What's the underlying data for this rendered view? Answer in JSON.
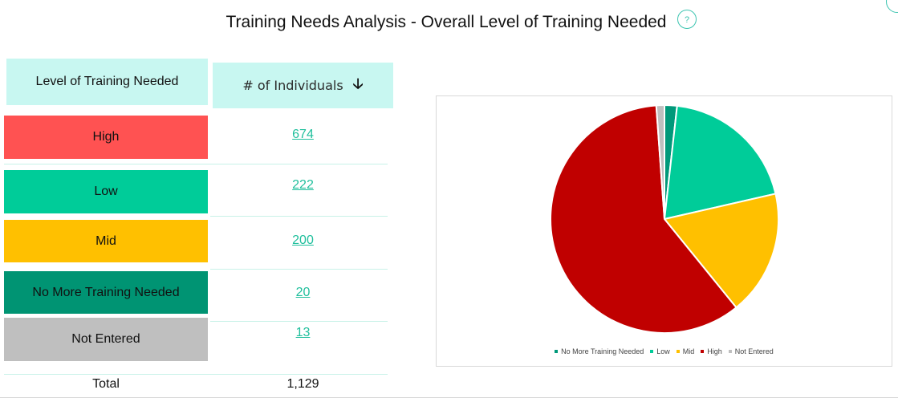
{
  "title": "Training Needs Analysis - Overall Level of Training Needed",
  "help_icon": "?",
  "table": {
    "col_level": "Level of Training Needed",
    "col_count": "# of Individuals",
    "sort_icon": "arrow-down-icon",
    "rows": [
      {
        "label": "High",
        "value": "674",
        "color": "#ff5252"
      },
      {
        "label": "Low",
        "value": "222",
        "color": "#00cc99"
      },
      {
        "label": "Mid",
        "value": "200",
        "color": "#ffc000"
      },
      {
        "label": "No More Training Needed",
        "value": "20",
        "color": "#009473"
      },
      {
        "label": "Not Entered",
        "value": "13",
        "color": "#bfbfbf"
      }
    ],
    "total_label": "Total",
    "total_value": "1,129"
  },
  "chart_data": {
    "type": "pie",
    "categories": [
      "No More Training Needed",
      "Low",
      "Mid",
      "High",
      "Not Entered"
    ],
    "values": [
      20,
      222,
      200,
      674,
      13
    ],
    "colors": [
      "#00997a",
      "#00cc99",
      "#ffc000",
      "#c00000",
      "#bfbfbf"
    ],
    "legend": [
      "No More Training Needed",
      "Low",
      "Mid",
      "High",
      "Not Entered"
    ],
    "legend_position": "bottom",
    "start_angle_deg": 0,
    "direction": "clockwise"
  }
}
